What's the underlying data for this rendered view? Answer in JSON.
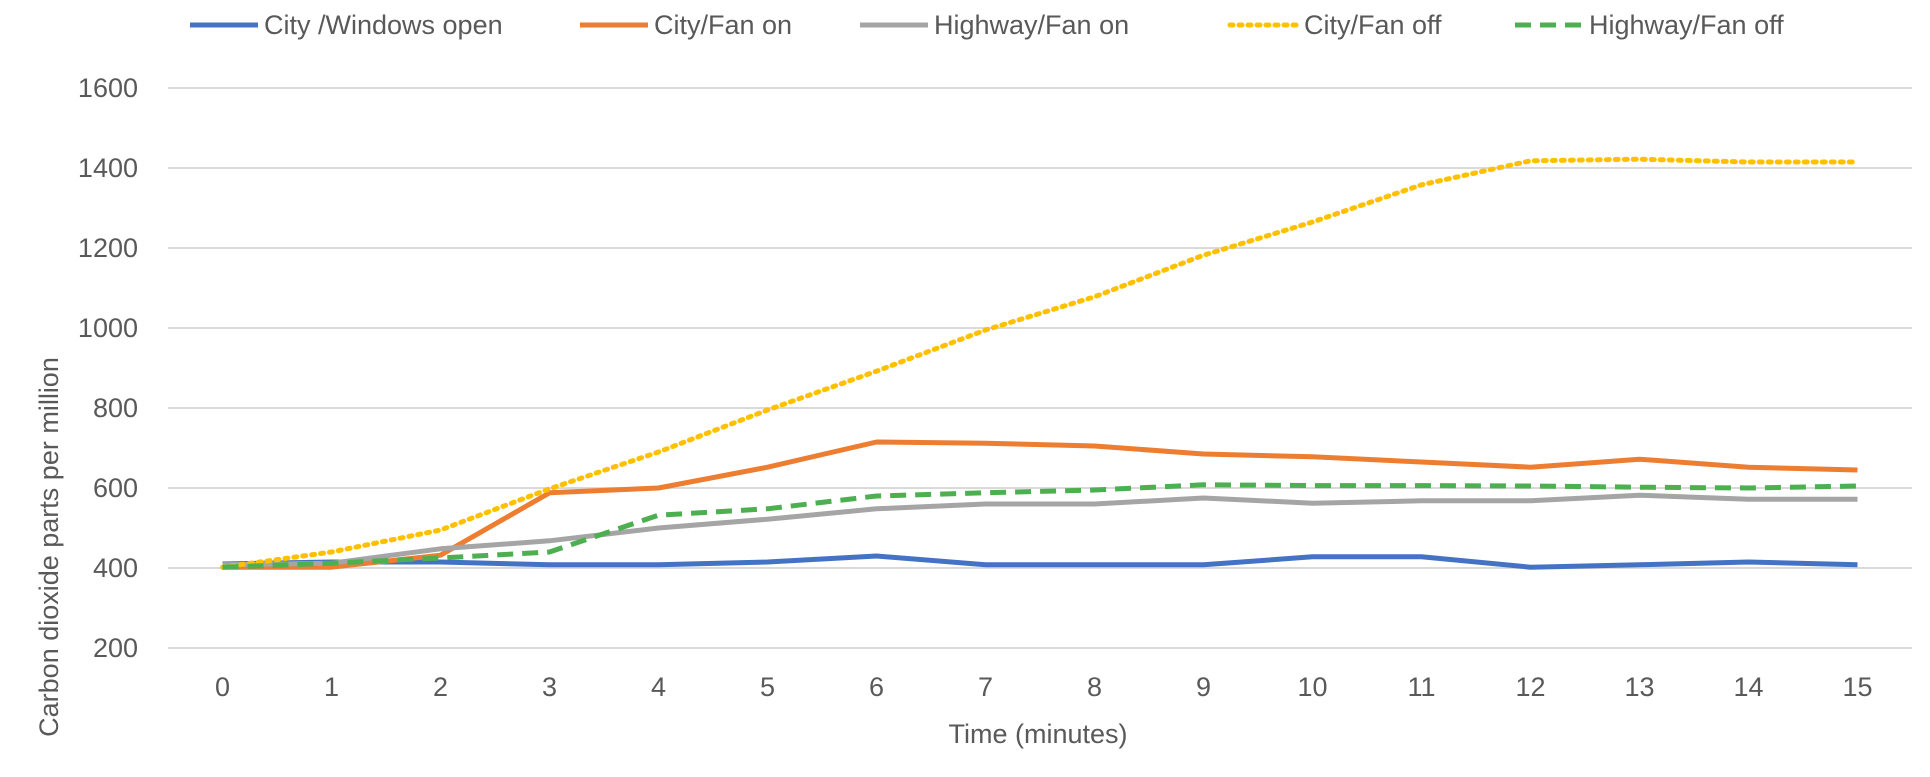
{
  "chart_data": {
    "type": "line",
    "title": "",
    "xlabel": "Time (minutes)",
    "ylabel": "Carbon dioxide parts per million",
    "x": [
      0,
      1,
      2,
      3,
      4,
      5,
      6,
      7,
      8,
      9,
      10,
      11,
      12,
      13,
      14,
      15
    ],
    "ylim": [
      200,
      1600
    ],
    "yticks": [
      200,
      400,
      600,
      800,
      1000,
      1200,
      1400,
      1600
    ],
    "grid": true,
    "legend": "top",
    "series": [
      {
        "name": "City /Windows open",
        "color": "#4472C4",
        "dash": "solid",
        "values": [
          410,
          415,
          415,
          408,
          408,
          415,
          430,
          408,
          408,
          408,
          428,
          428,
          402,
          408,
          415,
          408
        ]
      },
      {
        "name": "City/Fan on",
        "color": "#ED7D31",
        "dash": "solid",
        "values": [
          402,
          402,
          432,
          588,
          600,
          652,
          715,
          712,
          705,
          685,
          678,
          665,
          652,
          672,
          652,
          645
        ]
      },
      {
        "name": "Highway/Fan on",
        "color": "#A5A5A5",
        "dash": "solid",
        "values": [
          408,
          412,
          448,
          468,
          500,
          522,
          548,
          560,
          560,
          575,
          562,
          568,
          568,
          582,
          572,
          572
        ]
      },
      {
        "name": "City/Fan off",
        "color": "#FFC000",
        "dash": "dotted",
        "values": [
          402,
          440,
          495,
          598,
          690,
          795,
          892,
          995,
          1078,
          1182,
          1265,
          1358,
          1418,
          1422,
          1415,
          1415
        ]
      },
      {
        "name": "Highway/Fan off",
        "color": "#4CAF50",
        "dash": "dashed",
        "values": [
          402,
          412,
          425,
          440,
          532,
          548,
          580,
          588,
          595,
          608,
          606,
          606,
          605,
          602,
          600,
          605
        ]
      }
    ]
  }
}
